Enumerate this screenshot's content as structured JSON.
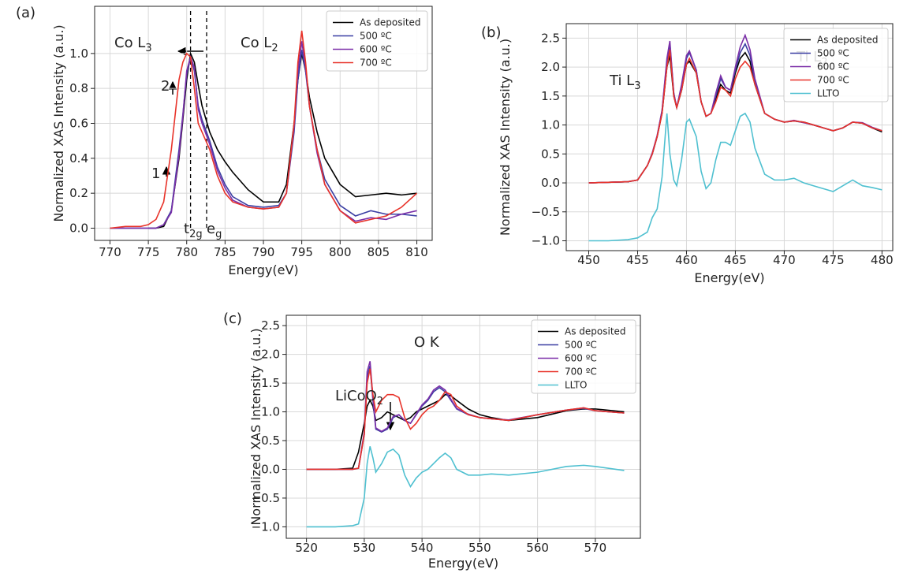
{
  "chart_data": [
    {
      "type": "line",
      "label": "(a)",
      "xlabel": "Energy(eV)",
      "ylabel": "Normalized XAS Intensity (a.u.)",
      "xlim": [
        768,
        812
      ],
      "ylim": [
        -0.07,
        1.27
      ],
      "xticks": [
        770,
        775,
        780,
        785,
        790,
        795,
        800,
        805,
        810
      ],
      "yticks": [
        {
          "value": 0,
          "label": "0.0"
        },
        0.2,
        0.4,
        0.6,
        0.8,
        {
          "value": 1,
          "label": "1.0"
        }
      ],
      "grid": true,
      "legend": "upper right",
      "annotations": [
        {
          "text": "Co L",
          "sub": "3"
        },
        {
          "text": "Co L",
          "sub": "2"
        },
        {
          "text": "2"
        },
        {
          "text": "1"
        },
        {
          "text": "t",
          "sub": "2g"
        },
        {
          "text": "e",
          "sub": "g"
        }
      ],
      "x": [
        770,
        772,
        774,
        775,
        776,
        777,
        778,
        779,
        779.5,
        780,
        780.5,
        781,
        781.5,
        782,
        783,
        784,
        785,
        786,
        788,
        790,
        792,
        793,
        794,
        794.5,
        795,
        795.5,
        796,
        797,
        798,
        800,
        802,
        804,
        806,
        808,
        810
      ],
      "series": [
        {
          "name": "As deposited",
          "color": "#000000",
          "values": [
            null,
            null,
            null,
            0,
            0,
            0.01,
            0.1,
            0.4,
            0.62,
            0.85,
            1.0,
            0.95,
            0.82,
            0.7,
            0.55,
            0.45,
            0.38,
            0.32,
            0.22,
            0.15,
            0.15,
            0.25,
            0.6,
            0.85,
            1.0,
            0.9,
            0.75,
            0.55,
            0.4,
            0.25,
            0.18,
            0.19,
            0.2,
            0.19,
            0.2
          ]
        },
        {
          "name": "500 ºC",
          "color": "#3b3fa3",
          "values": [
            0,
            0,
            0,
            0,
            0,
            0.02,
            0.1,
            0.45,
            0.65,
            0.88,
            0.98,
            0.9,
            0.7,
            0.62,
            0.5,
            0.35,
            0.25,
            0.18,
            0.13,
            0.12,
            0.13,
            0.2,
            0.55,
            0.85,
            1.02,
            0.9,
            0.7,
            0.45,
            0.28,
            0.13,
            0.07,
            0.1,
            0.08,
            0.08,
            0.07
          ]
        },
        {
          "name": "600 ºC",
          "color": "#7b2fa8",
          "values": [
            0,
            0,
            0,
            0,
            0,
            0.02,
            0.09,
            0.42,
            0.64,
            0.9,
            0.98,
            0.92,
            0.68,
            0.6,
            0.48,
            0.33,
            0.23,
            0.16,
            0.12,
            0.11,
            0.12,
            0.2,
            0.58,
            0.9,
            1.07,
            0.92,
            0.7,
            0.43,
            0.25,
            0.1,
            0.04,
            0.06,
            0.05,
            0.08,
            0.1
          ]
        },
        {
          "name": "700 ºC",
          "color": "#e8332a",
          "values": [
            0,
            0.01,
            0.01,
            0.02,
            0.05,
            0.15,
            0.45,
            0.85,
            0.95,
            1.0,
            0.98,
            0.8,
            0.6,
            0.55,
            0.45,
            0.3,
            0.2,
            0.15,
            0.12,
            0.11,
            0.12,
            0.2,
            0.6,
            0.95,
            1.13,
            0.95,
            0.7,
            0.45,
            0.25,
            0.1,
            0.03,
            0.05,
            0.07,
            0.12,
            0.2
          ]
        }
      ]
    },
    {
      "type": "line",
      "label": "(b)",
      "xlabel": "Energy(eV)",
      "ylabel": "Normalized XAS Intensity (a.u.)",
      "xlim": [
        447.7,
        481.1
      ],
      "ylim": [
        -1.17,
        2.75
      ],
      "xticks": [
        450,
        455,
        460,
        465,
        470,
        475,
        480
      ],
      "yticks": [
        {
          "value": -1,
          "label": "−1.0"
        },
        {
          "value": -0.5,
          "label": "−0.5"
        },
        {
          "value": 0,
          "label": "0.0"
        },
        0.5,
        {
          "value": 1,
          "label": "1.0"
        },
        1.5,
        {
          "value": 2,
          "label": "2.0"
        },
        2.5
      ],
      "grid": true,
      "legend": "upper right",
      "annotations": [
        {
          "text": "Ti L",
          "sub": "3"
        },
        {
          "text": "Ti L",
          "sub": "2"
        }
      ],
      "x": [
        450,
        452,
        454,
        455,
        456,
        456.5,
        457,
        457.5,
        458,
        458.3,
        458.7,
        459,
        459.5,
        460,
        460.3,
        461,
        461.5,
        462,
        462.5,
        463,
        463.5,
        464,
        464.5,
        465,
        465.5,
        466,
        466.5,
        467,
        468,
        469,
        470,
        471,
        472,
        473,
        474,
        475,
        476,
        477,
        478,
        479,
        480
      ],
      "series": [
        {
          "name": "As deposited",
          "color": "#000000",
          "values": [
            0,
            0.01,
            0.02,
            0.05,
            0.3,
            0.5,
            0.8,
            1.2,
            2.0,
            2.2,
            1.5,
            1.3,
            1.6,
            2.05,
            2.1,
            1.9,
            1.4,
            1.15,
            1.2,
            1.45,
            1.7,
            1.6,
            1.55,
            1.9,
            2.15,
            2.25,
            2.1,
            1.7,
            1.2,
            1.1,
            1.05,
            1.07,
            1.05,
            1.0,
            0.95,
            0.9,
            0.95,
            1.05,
            1.03,
            0.95,
            0.88
          ]
        },
        {
          "name": "500 ºC",
          "color": "#3b3fa3",
          "values": [
            0,
            0.01,
            0.02,
            0.05,
            0.3,
            0.5,
            0.8,
            1.25,
            2.1,
            2.4,
            1.55,
            1.3,
            1.65,
            2.15,
            2.25,
            1.95,
            1.4,
            1.15,
            1.2,
            1.5,
            1.8,
            1.65,
            1.6,
            1.95,
            2.25,
            2.4,
            2.2,
            1.75,
            1.2,
            1.1,
            1.05,
            1.07,
            1.04,
            1.0,
            0.95,
            0.9,
            0.95,
            1.05,
            1.03,
            0.95,
            0.9
          ]
        },
        {
          "name": "600 ºC",
          "color": "#7b2fa8",
          "values": [
            0,
            0.01,
            0.02,
            0.05,
            0.3,
            0.52,
            0.82,
            1.25,
            2.15,
            2.45,
            1.55,
            1.3,
            1.7,
            2.2,
            2.28,
            1.95,
            1.4,
            1.15,
            1.2,
            1.55,
            1.85,
            1.65,
            1.6,
            2.0,
            2.35,
            2.55,
            2.3,
            1.8,
            1.2,
            1.1,
            1.05,
            1.08,
            1.04,
            1.0,
            0.95,
            0.9,
            0.95,
            1.05,
            1.04,
            0.96,
            0.9
          ]
        },
        {
          "name": "700 ºC",
          "color": "#e8332a",
          "values": [
            0,
            0.01,
            0.02,
            0.05,
            0.3,
            0.5,
            0.8,
            1.2,
            2.0,
            2.3,
            1.5,
            1.3,
            1.6,
            2.05,
            2.15,
            1.9,
            1.4,
            1.15,
            1.2,
            1.4,
            1.65,
            1.6,
            1.5,
            1.8,
            2.0,
            2.1,
            2.0,
            1.7,
            1.2,
            1.1,
            1.05,
            1.07,
            1.05,
            1.0,
            0.95,
            0.9,
            0.95,
            1.05,
            1.03,
            0.95,
            0.9
          ]
        },
        {
          "name": "LLTO",
          "color": "#4fc0d0",
          "values": [
            -1.0,
            -1.0,
            -0.98,
            -0.95,
            -0.85,
            -0.6,
            -0.45,
            0.1,
            1.2,
            0.5,
            0.05,
            -0.05,
            0.4,
            1.05,
            1.1,
            0.8,
            0.2,
            -0.1,
            0.0,
            0.4,
            0.7,
            0.7,
            0.65,
            0.9,
            1.15,
            1.2,
            1.05,
            0.6,
            0.15,
            0.05,
            0.05,
            0.08,
            0.0,
            -0.05,
            -0.1,
            -0.15,
            -0.05,
            0.05,
            -0.05,
            -0.08,
            -0.12
          ]
        }
      ]
    },
    {
      "type": "line",
      "label": "(c)",
      "xlabel": "Energy(eV)",
      "ylabel": "Normalized XAS Intensity (a.u.)",
      "xlim": [
        516.5,
        577.8
      ],
      "ylim": [
        -1.2,
        2.68
      ],
      "xticks": [
        520,
        530,
        540,
        550,
        560,
        570
      ],
      "yticks": [
        {
          "value": -1,
          "label": "−1.0"
        },
        {
          "value": -0.5,
          "label": "−0.5"
        },
        {
          "value": 0,
          "label": "0.0"
        },
        0.5,
        {
          "value": 1,
          "label": "1.0"
        },
        1.5,
        {
          "value": 2,
          "label": "2.0"
        },
        2.5
      ],
      "grid": true,
      "legend": "upper right",
      "annotations": [
        {
          "text": "O K"
        },
        {
          "text": "LiCoO",
          "sub": "2"
        }
      ],
      "x": [
        520,
        525,
        528,
        529,
        530,
        530.5,
        531,
        531.5,
        532,
        533,
        534,
        535,
        536,
        537,
        538,
        539,
        540,
        541,
        542,
        543,
        544,
        545,
        546,
        548,
        550,
        552,
        555,
        560,
        565,
        568,
        570,
        575
      ],
      "series": [
        {
          "name": "As deposited",
          "color": "#000000",
          "values": [
            0,
            0,
            0.02,
            0.3,
            0.8,
            1.1,
            1.2,
            1.1,
            0.85,
            0.9,
            1.0,
            0.95,
            0.9,
            0.85,
            0.9,
            1.0,
            1.05,
            1.1,
            1.15,
            1.2,
            1.3,
            1.28,
            1.2,
            1.05,
            0.95,
            0.9,
            0.85,
            0.9,
            1.02,
            1.05,
            1.05,
            1.0
          ]
        },
        {
          "name": "500 ºC",
          "color": "#3b3fa3",
          "values": [
            0,
            0,
            0,
            0.02,
            0.6,
            1.6,
            1.8,
            1.2,
            0.7,
            0.65,
            0.7,
            0.9,
            0.95,
            0.85,
            0.8,
            0.95,
            1.1,
            1.2,
            1.35,
            1.42,
            1.35,
            1.2,
            1.05,
            0.95,
            0.9,
            0.88,
            0.85,
            0.95,
            1.03,
            1.06,
            1.02,
            0.98
          ]
        },
        {
          "name": "600 ºC",
          "color": "#7b2fa8",
          "values": [
            0,
            0,
            0,
            0.02,
            0.65,
            1.7,
            1.88,
            1.25,
            0.72,
            0.66,
            0.72,
            0.92,
            0.95,
            0.85,
            0.8,
            0.96,
            1.12,
            1.22,
            1.38,
            1.45,
            1.38,
            1.22,
            1.06,
            0.96,
            0.9,
            0.88,
            0.86,
            0.95,
            1.03,
            1.07,
            1.02,
            0.98
          ]
        },
        {
          "name": "700 ºC",
          "color": "#e8332a",
          "values": [
            0,
            0,
            0,
            0.02,
            0.6,
            1.5,
            1.75,
            1.3,
            1.0,
            1.2,
            1.3,
            1.3,
            1.25,
            0.9,
            0.7,
            0.8,
            0.95,
            1.05,
            1.1,
            1.2,
            1.35,
            1.3,
            1.1,
            0.95,
            0.9,
            0.88,
            0.85,
            0.95,
            1.03,
            1.07,
            1.02,
            0.98
          ]
        },
        {
          "name": "LLTO",
          "color": "#4fc0d0",
          "values": [
            -1.0,
            -1.0,
            -0.98,
            -0.95,
            -0.5,
            0.1,
            0.4,
            0.2,
            -0.05,
            0.1,
            0.3,
            0.35,
            0.25,
            -0.1,
            -0.3,
            -0.15,
            -0.05,
            0.0,
            0.1,
            0.2,
            0.28,
            0.2,
            0.0,
            -0.1,
            -0.1,
            -0.08,
            -0.1,
            -0.05,
            0.05,
            0.07,
            0.05,
            -0.02
          ]
        }
      ]
    }
  ]
}
